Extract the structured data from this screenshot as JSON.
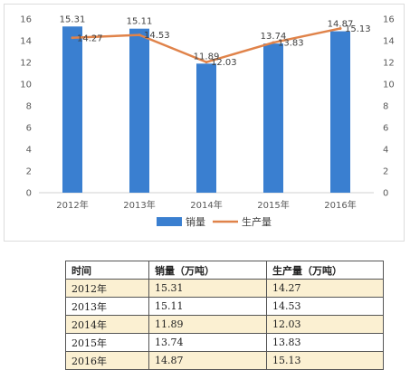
{
  "chart_data": {
    "type": "bar",
    "categories": [
      "2012年",
      "2013年",
      "2014年",
      "2015年",
      "2016年"
    ],
    "series": [
      {
        "name": "销量",
        "type": "bar",
        "values": [
          15.31,
          15.11,
          11.89,
          13.74,
          14.87
        ],
        "color": "#3a7fd0"
      },
      {
        "name": "生产量",
        "type": "line",
        "values": [
          14.27,
          14.53,
          12.03,
          13.83,
          15.13
        ],
        "color": "#e0834a"
      }
    ],
    "ylim": [
      0,
      16
    ],
    "yticks": [
      0,
      2,
      4,
      6,
      8,
      10,
      12,
      14,
      16
    ],
    "y2lim": [
      0,
      16
    ],
    "y2ticks": [
      0,
      2,
      4,
      6,
      8,
      10,
      12,
      14,
      16
    ],
    "legend_position": "bottom",
    "grid": false
  },
  "table": {
    "headers": [
      "时间",
      "销量（万吨）",
      "生产量（万吨）"
    ],
    "rows": [
      [
        "2012年",
        "15.31",
        "14.27"
      ],
      [
        "2013年",
        "15.11",
        "14.53"
      ],
      [
        "2014年",
        "11.89",
        "12.03"
      ],
      [
        "2015年",
        "13.74",
        "13.83"
      ],
      [
        "2016年",
        "14.87",
        "15.13"
      ]
    ]
  }
}
